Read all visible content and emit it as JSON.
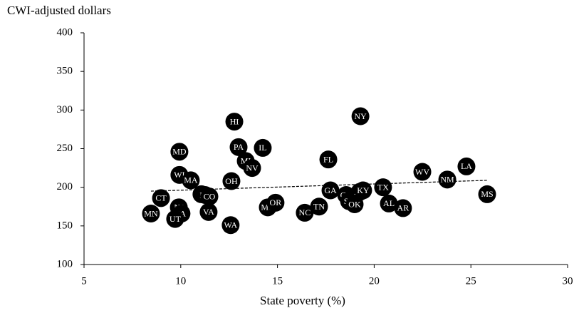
{
  "chart_data": {
    "type": "scatter",
    "y_label": "CWI-adjusted dollars",
    "x_label": "State poverty (%)",
    "color": "#000000",
    "labels": [
      "MN",
      "CT",
      "WI",
      "MD",
      "MA",
      "NJ",
      "IA",
      "UT",
      "RI",
      "KS",
      "CO",
      "VA",
      "HI",
      "OH",
      "WA",
      "PA",
      "MI",
      "NV",
      "IL",
      "MO",
      "OR",
      "NC",
      "TN",
      "FL",
      "GA",
      "CA",
      "SC",
      "OK",
      "AZ",
      "KY",
      "NY",
      "TX",
      "AL",
      "AR",
      "WV",
      "NM",
      "LA",
      "MS"
    ],
    "x": [
      8.46,
      8.98,
      9.93,
      9.93,
      10.52,
      9.9,
      10.04,
      9.71,
      11.07,
      11.26,
      11.48,
      11.44,
      12.77,
      12.62,
      12.58,
      12.99,
      13.36,
      13.69,
      14.24,
      14.5,
      14.9,
      16.41,
      17.15,
      17.63,
      17.74,
      18.55,
      18.7,
      18.99,
      19.25,
      19.43,
      19.29,
      20.46,
      20.76,
      21.49,
      22.49,
      23.78,
      24.77,
      25.84
    ],
    "y": [
      166,
      186,
      216,
      246,
      209,
      174,
      166,
      159,
      191,
      190,
      188,
      168,
      285,
      208,
      151,
      252,
      234,
      225,
      251,
      174,
      180,
      167,
      175,
      236,
      196,
      190,
      182,
      178,
      194,
      196,
      292,
      200,
      179,
      173,
      220,
      210,
      227,
      191
    ],
    "trendline": {
      "x": [
        8.46,
        25.84
      ],
      "y": [
        195,
        209
      ]
    },
    "xlim": [
      5,
      30
    ],
    "xticks": [
      5,
      10,
      15,
      20,
      25,
      30
    ],
    "ylim": [
      100,
      400
    ],
    "yticks": [
      100,
      150,
      200,
      250,
      300,
      350,
      400
    ]
  }
}
